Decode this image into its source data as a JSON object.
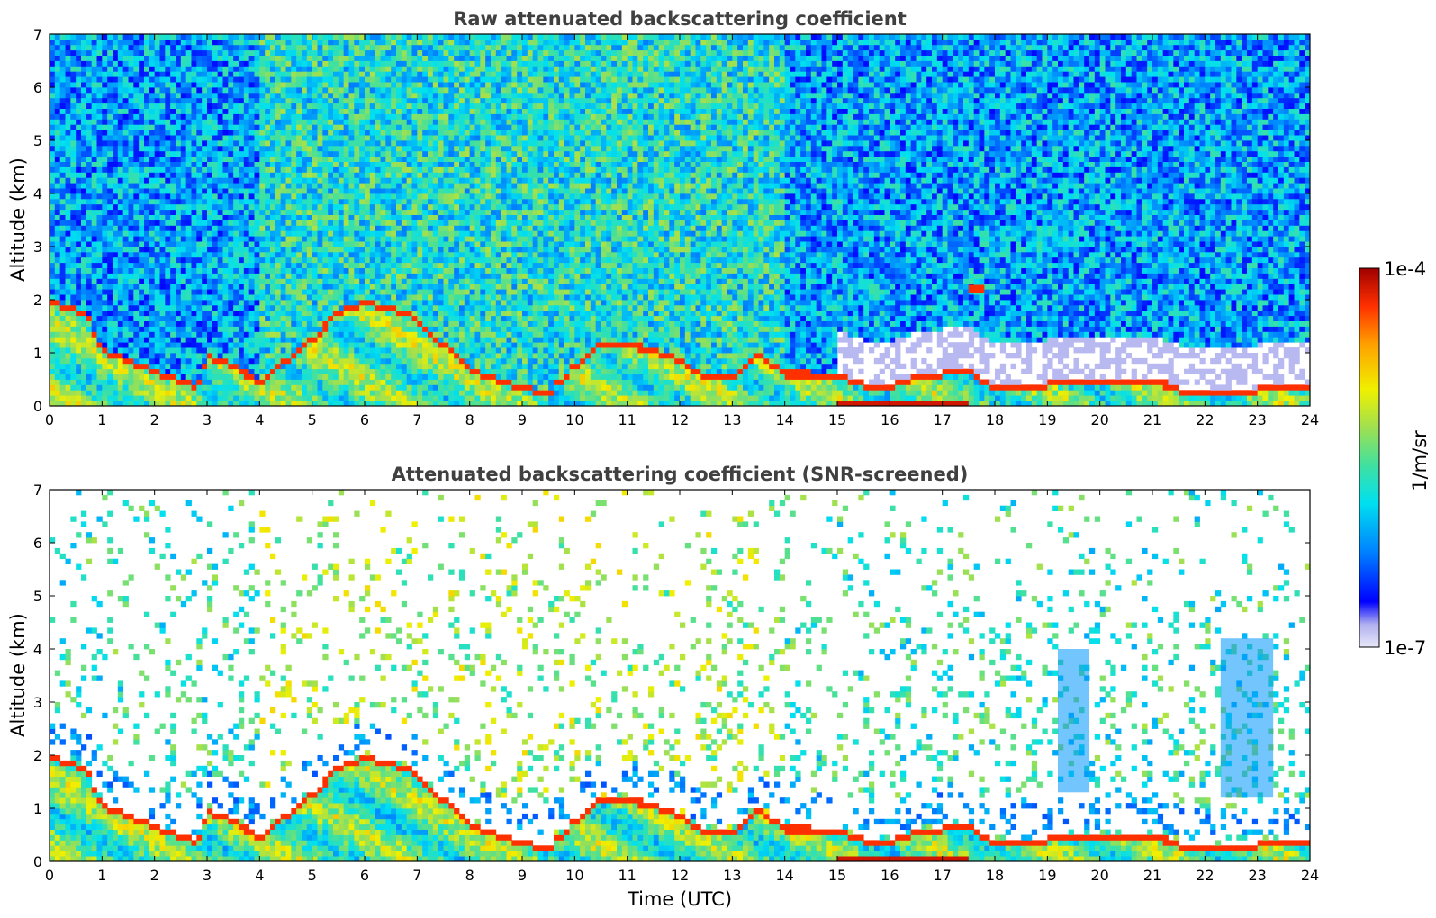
{
  "chart_data": [
    {
      "type": "heatmap",
      "title": "Raw attenuated backscattering coefficient",
      "xlabel": "",
      "ylabel": "Altitude (km)",
      "xlim": [
        0,
        24
      ],
      "ylim": [
        0,
        7
      ],
      "xticks": [
        "0",
        "1",
        "2",
        "3",
        "4",
        "5",
        "6",
        "7",
        "8",
        "9",
        "10",
        "11",
        "12",
        "13",
        "14",
        "15",
        "16",
        "17",
        "18",
        "19",
        "20",
        "21",
        "22",
        "23",
        "24"
      ],
      "yticks": [
        "0",
        "1",
        "2",
        "3",
        "4",
        "5",
        "6",
        "7"
      ],
      "screened": false,
      "features": {
        "boundary_layer_top_km": [
          [
            0,
            1.9
          ],
          [
            0.7,
            1.7
          ],
          [
            1,
            1.0
          ],
          [
            2,
            0.6
          ],
          [
            2.8,
            0.3
          ],
          [
            3,
            0.9
          ],
          [
            3.5,
            0.7
          ],
          [
            4,
            0.4
          ],
          [
            4.5,
            0.8
          ],
          [
            5,
            1.2
          ],
          [
            5.5,
            1.7
          ],
          [
            6,
            1.9
          ],
          [
            6.5,
            1.8
          ],
          [
            7,
            1.6
          ],
          [
            7.5,
            1.1
          ],
          [
            8,
            0.6
          ],
          [
            8.5,
            0.45
          ],
          [
            9,
            0.3
          ],
          [
            9.5,
            0.2
          ],
          [
            10,
            0.7
          ],
          [
            10.5,
            1.1
          ],
          [
            11,
            1.1
          ],
          [
            11.5,
            1.0
          ],
          [
            12,
            0.8
          ],
          [
            12.5,
            0.45
          ],
          [
            13,
            0.5
          ],
          [
            13.5,
            0.9
          ],
          [
            14,
            0.55
          ],
          [
            14.5,
            0.55
          ],
          [
            15,
            0.5
          ],
          [
            15.5,
            0.35
          ],
          [
            16,
            0.3
          ],
          [
            16.5,
            0.5
          ],
          [
            17,
            0.55
          ],
          [
            17.5,
            0.6
          ],
          [
            18,
            0.3
          ],
          [
            18.5,
            0.25
          ],
          [
            19,
            0.35
          ],
          [
            19.5,
            0.4
          ],
          [
            20,
            0.4
          ],
          [
            21,
            0.45
          ],
          [
            21.5,
            0.25
          ],
          [
            22,
            0.25
          ],
          [
            23,
            0.25
          ],
          [
            24,
            0.3
          ]
        ],
        "elevated_aerosol_layer": {
          "time": [
            17.5,
            17.8
          ],
          "altitude_km": 2.2
        }
      }
    },
    {
      "type": "heatmap",
      "title": "Attenuated backscattering coefficient (SNR-screened)",
      "xlabel": "Time (UTC)",
      "ylabel": "Altitude (km)",
      "xlim": [
        0,
        24
      ],
      "ylim": [
        0,
        7
      ],
      "xticks": [
        "0",
        "1",
        "2",
        "3",
        "4",
        "5",
        "6",
        "7",
        "8",
        "9",
        "10",
        "11",
        "12",
        "13",
        "14",
        "15",
        "16",
        "17",
        "18",
        "19",
        "20",
        "21",
        "22",
        "23",
        "24"
      ],
      "yticks": [
        "0",
        "1",
        "2",
        "3",
        "4",
        "5",
        "6",
        "7"
      ],
      "screened": true,
      "features": {
        "aerosol_plumes": [
          {
            "time": [
              19.2,
              19.8
            ],
            "altitude_km": [
              1.3,
              4.0
            ]
          },
          {
            "time": [
              22.3,
              23.3
            ],
            "altitude_km": [
              1.2,
              4.2
            ]
          }
        ]
      }
    }
  ],
  "colorbar": {
    "label": "1/m/sr",
    "max_label": "1e-4",
    "min_label": "1e-7",
    "scale": "log",
    "colormap": [
      "#e8e8f8",
      "#b0b0f0",
      "#0000ff",
      "#0080ff",
      "#00e0f0",
      "#40e0a0",
      "#a0e050",
      "#f0f000",
      "#ffa000",
      "#ff3000",
      "#a00000"
    ]
  }
}
